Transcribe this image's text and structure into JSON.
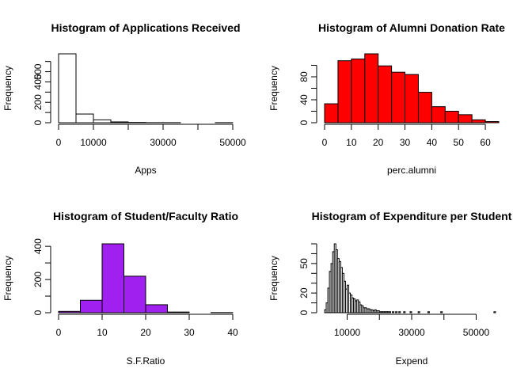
{
  "chart_data": [
    {
      "type": "bar",
      "title": "Histogram of Applications Received",
      "xlabel": "Apps",
      "ylabel": "Frequency",
      "color": "#ffffff",
      "bin_edges": [
        0,
        5000,
        10000,
        15000,
        20000,
        25000,
        30000,
        35000,
        40000,
        45000,
        50000
      ],
      "values": [
        675,
        85,
        28,
        8,
        3,
        1,
        1,
        0,
        0,
        1
      ],
      "xlim": [
        0,
        50000
      ],
      "ylim": [
        0,
        675
      ],
      "xticks": [
        0,
        10000,
        30000,
        50000
      ],
      "xtick_marks": [
        0,
        10000,
        20000,
        30000,
        40000,
        50000
      ],
      "yticks": [
        0,
        200,
        400,
        500
      ],
      "ytick_marks": [
        0,
        100,
        200,
        300,
        400,
        500,
        600
      ]
    },
    {
      "type": "bar",
      "title": "Histogram of Alumni Donation Rate",
      "xlabel": "perc.alumni",
      "ylabel": "Frequency",
      "color": "#ff0000",
      "bin_edges": [
        0,
        5,
        10,
        15,
        20,
        25,
        30,
        35,
        40,
        45,
        50,
        55,
        60,
        65
      ],
      "values": [
        33,
        108,
        111,
        120,
        99,
        88,
        84,
        53,
        28,
        20,
        14,
        5,
        2
      ],
      "xlim": [
        0,
        65
      ],
      "ylim": [
        0,
        120
      ],
      "xticks": [
        0,
        10,
        20,
        30,
        40,
        50,
        60
      ],
      "xtick_marks": [
        0,
        10,
        20,
        30,
        40,
        50,
        60
      ],
      "yticks": [
        0,
        40,
        80
      ],
      "ytick_marks": [
        0,
        20,
        40,
        60,
        80,
        100
      ]
    },
    {
      "type": "bar",
      "title": "Histogram of Student/Faculty Ratio",
      "xlabel": "S.F.Ratio",
      "ylabel": "Frequency",
      "color": "#a020f0",
      "bin_edges": [
        0,
        5,
        10,
        15,
        20,
        25,
        30,
        35,
        40
      ],
      "values": [
        8,
        75,
        415,
        220,
        48,
        4,
        0,
        1
      ],
      "xlim": [
        0,
        40
      ],
      "ylim": [
        0,
        415
      ],
      "xticks": [
        0,
        10,
        20,
        30,
        40
      ],
      "xtick_marks": [
        0,
        10,
        20,
        30,
        40
      ],
      "yticks": [
        0,
        200,
        400
      ],
      "ytick_marks": [
        0,
        100,
        200,
        300,
        400
      ]
    },
    {
      "type": "bar",
      "title": "Histogram of Expenditure per Student",
      "xlabel": "Expend",
      "ylabel": "Frequency",
      "color": "#ffffff",
      "bin_edges": [
        3000,
        3500,
        4000,
        4500,
        5000,
        5500,
        6000,
        6500,
        7000,
        7500,
        8000,
        8500,
        9000,
        9500,
        10000,
        10500,
        11000,
        11500,
        12000,
        12500,
        13000,
        13500,
        14000,
        14500,
        15000,
        15500,
        16000,
        16500,
        17000,
        17500,
        18000,
        18500,
        19000,
        19500,
        20000,
        20500,
        21000,
        21500,
        22000,
        22500,
        23000,
        23500,
        24000,
        24500,
        25000,
        25500,
        26000,
        26500,
        27000,
        27500,
        28000,
        28500,
        29000,
        29500,
        30000,
        30500,
        31000,
        31500,
        32000,
        32500,
        33000,
        33500,
        34000,
        34500,
        35000,
        35500,
        36000,
        36500,
        37000,
        37500,
        38000,
        38500,
        39000,
        39500,
        40000,
        40500,
        41000,
        41500,
        42000,
        42500,
        43000,
        43500,
        44000,
        44500,
        45000,
        45500,
        46000,
        46500,
        47000,
        47500,
        48000,
        48500,
        49000,
        49500,
        50000,
        50500,
        51000,
        51500,
        52000,
        52500,
        53000,
        53500,
        54000,
        54500,
        55000,
        55500,
        56000,
        56500,
        57000
      ],
      "values": [
        3,
        10,
        25,
        42,
        50,
        62,
        70,
        64,
        55,
        52,
        46,
        40,
        32,
        24,
        28,
        20,
        18,
        15,
        14,
        12,
        13,
        11,
        8,
        7,
        5,
        5,
        4,
        4,
        3,
        3,
        2,
        3,
        2,
        2,
        1,
        1,
        1,
        1,
        1,
        1,
        1,
        0,
        1,
        0,
        1,
        0,
        1,
        0,
        0,
        1,
        0,
        0,
        0,
        1,
        0,
        0,
        0,
        0,
        1,
        0,
        0,
        0,
        0,
        0,
        1,
        0,
        0,
        0,
        0,
        0,
        0,
        0,
        1,
        0,
        0,
        0,
        0,
        0,
        0,
        0,
        0,
        0,
        0,
        0,
        0,
        0,
        0,
        0,
        0,
        0,
        0,
        0,
        0,
        0,
        0,
        0,
        0,
        0,
        0,
        0,
        0,
        0,
        0,
        0,
        0,
        1,
        0,
        0
      ],
      "xlim": [
        3000,
        57000
      ],
      "ylim": [
        0,
        70
      ],
      "xticks": [
        10000,
        30000,
        50000
      ],
      "xtick_marks": [
        10000,
        20000,
        30000,
        40000,
        50000
      ],
      "yticks": [
        0,
        20,
        50
      ],
      "ytick_marks": [
        0,
        10,
        20,
        30,
        40,
        50,
        60,
        70
      ]
    }
  ]
}
